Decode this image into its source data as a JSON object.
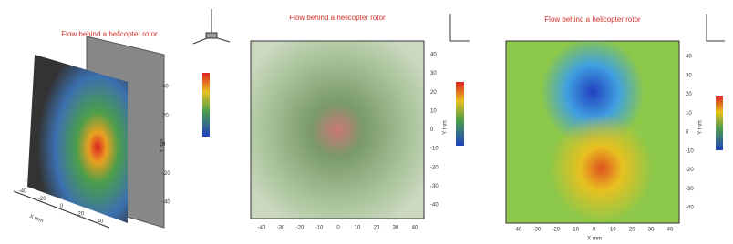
{
  "panels": [
    {
      "title": "Flow behind a helicopter rotor",
      "x_label": "X mm",
      "y_label": "Y mm",
      "x_ticks": [
        -40,
        -20,
        0,
        20,
        40
      ],
      "y_ticks": [
        40,
        20,
        0,
        -20,
        -40
      ]
    },
    {
      "title": "Flow behind a helicopter rotor",
      "y_label": "Y mm",
      "x_ticks": [
        -40,
        -30,
        -20,
        -10,
        0,
        10,
        20,
        30,
        40
      ],
      "y_ticks": [
        40,
        30,
        20,
        10,
        0,
        -10,
        -20,
        -30,
        -40
      ]
    },
    {
      "title": "Flow behind a helicopter rotor",
      "x_label": "X mm",
      "y_label": "Y mm",
      "x_ticks": [
        -40,
        -30,
        -20,
        -10,
        0,
        10,
        20,
        30,
        40
      ],
      "y_ticks": [
        40,
        30,
        20,
        10,
        0,
        -10,
        -20,
        -30,
        -40
      ]
    }
  ]
}
